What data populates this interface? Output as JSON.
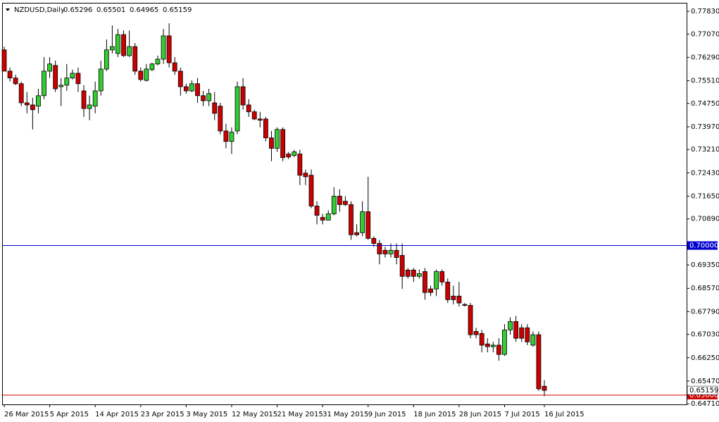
{
  "chart_data": {
    "type": "candlestick",
    "title": "NZDUSD,Daily",
    "up_color": "#33cc33",
    "down_color": "#cc0000",
    "ylim": [
      0.6469,
      0.7809
    ],
    "yticks": [
      {
        "value": 0.6471,
        "label": "0.64710"
      },
      {
        "value": 0.6547,
        "label": "0.65470"
      },
      {
        "value": 0.6625,
        "label": "0.66250"
      },
      {
        "value": 0.6703,
        "label": "0.67030"
      },
      {
        "value": 0.6779,
        "label": "0.67790"
      },
      {
        "value": 0.6857,
        "label": "0.68570"
      },
      {
        "value": 0.6935,
        "label": "0.69350"
      },
      {
        "value": 0.7089,
        "label": "0.70890"
      },
      {
        "value": 0.7165,
        "label": "0.71650"
      },
      {
        "value": 0.7243,
        "label": "0.72430"
      },
      {
        "value": 0.7321,
        "label": "0.73210"
      },
      {
        "value": 0.7397,
        "label": "0.73970"
      },
      {
        "value": 0.7475,
        "label": "0.74750"
      },
      {
        "value": 0.7551,
        "label": "0.75510"
      },
      {
        "value": 0.7629,
        "label": "0.76290"
      },
      {
        "value": 0.7707,
        "label": "0.77070"
      },
      {
        "value": 0.7783,
        "label": "0.77830"
      }
    ],
    "hlines": [
      {
        "value": 0.7,
        "label": "0.70000",
        "color": "#0000cc"
      },
      {
        "value": 0.65,
        "label": "0.65000",
        "color": "#cc0000"
      }
    ],
    "categories": [
      "26 Mar 2015",
      null,
      null,
      null,
      null,
      null,
      null,
      null,
      "5 Apr 2015",
      null,
      null,
      null,
      null,
      null,
      null,
      null,
      "14 Apr 2015",
      null,
      null,
      null,
      null,
      null,
      null,
      null,
      "23 Apr 2015",
      null,
      null,
      null,
      null,
      null,
      null,
      null,
      "3 May 2015",
      null,
      null,
      null,
      null,
      null,
      null,
      null,
      "12 May 2015",
      null,
      null,
      null,
      null,
      null,
      null,
      null,
      "21 May 2015",
      null,
      null,
      null,
      null,
      null,
      null,
      null,
      "31 May 2015",
      null,
      null,
      null,
      null,
      null,
      null,
      null,
      "9 Jun 2015",
      null,
      null,
      null,
      null,
      null,
      null,
      null,
      "18 Jun 2015",
      null,
      null,
      null,
      null,
      null,
      null,
      null,
      "28 Jun 2015",
      null,
      null,
      null,
      null,
      null,
      null,
      null,
      "7 Jul 2015",
      null,
      null,
      null,
      null,
      null,
      null,
      "16 Jul 2015"
    ],
    "open": [
      0.7654,
      0.7583,
      0.756,
      0.7541,
      0.7477,
      0.747,
      0.7466,
      0.7501,
      0.7583,
      0.7602,
      0.7531,
      0.7536,
      0.756,
      0.7576,
      0.7517,
      0.7458,
      0.7466,
      0.7517,
      0.759,
      0.7654,
      0.7642,
      0.7705,
      0.7635,
      0.7665,
      0.7583,
      0.7552,
      0.7588,
      0.7607,
      0.7623,
      0.7701,
      0.7611,
      0.7583,
      0.7531,
      0.7517,
      0.7541,
      0.7501,
      0.7484,
      0.7477,
      0.7466,
      0.7383,
      0.7348,
      0.7383,
      0.7531,
      0.747,
      0.7447,
      0.7423,
      0.7423,
      0.736,
      0.7325,
      0.7388,
      0.7306,
      0.7301,
      0.7306,
      0.7242,
      0.7235,
      0.7132,
      0.7094,
      0.7085,
      0.7106,
      0.7165,
      0.7148,
      0.7137,
      0.7043,
      0.7043,
      0.7113,
      0.7024,
      0.7007,
      0.6984,
      0.6972,
      0.6984,
      0.6967,
      0.6918,
      0.6918,
      0.6897,
      0.6913,
      0.6855,
      0.6855,
      0.6913,
      0.6878,
      0.6831,
      0.6831,
      0.6803,
      0.68,
      0.6713,
      0.6706,
      0.6671,
      0.6662,
      0.6667,
      0.6636,
      0.6718,
      0.6746,
      0.6725,
      0.6725,
      0.6667,
      0.6702,
      0.65296
    ],
    "high": [
      0.7665,
      0.7595,
      0.7571,
      0.7548,
      0.7513,
      0.7494,
      0.7524,
      0.763,
      0.763,
      0.7618,
      0.756,
      0.7607,
      0.7588,
      0.7595,
      0.7536,
      0.7501,
      0.7548,
      0.7618,
      0.7689,
      0.7736,
      0.7724,
      0.7719,
      0.7719,
      0.7677,
      0.7595,
      0.7607,
      0.7611,
      0.7635,
      0.7724,
      0.7743,
      0.763,
      0.7595,
      0.7541,
      0.7552,
      0.756,
      0.7517,
      0.7524,
      0.7513,
      0.7477,
      0.7407,
      0.7395,
      0.7548,
      0.756,
      0.7489,
      0.7454,
      0.7447,
      0.743,
      0.7383,
      0.7395,
      0.7395,
      0.7313,
      0.732,
      0.732,
      0.7254,
      0.7254,
      0.7148,
      0.7106,
      0.7118,
      0.7195,
      0.7188,
      0.7165,
      0.7148,
      0.7071,
      0.7148,
      0.723,
      0.7031,
      0.7019,
      0.6996,
      0.7007,
      0.7007,
      0.7007,
      0.6925,
      0.6925,
      0.692,
      0.6925,
      0.6866,
      0.692,
      0.692,
      0.689,
      0.6866,
      0.6878,
      0.6808,
      0.6808,
      0.6725,
      0.6718,
      0.669,
      0.6678,
      0.669,
      0.6737,
      0.676,
      0.6765,
      0.6737,
      0.6737,
      0.6713,
      0.6713,
      0.65501
    ],
    "low": [
      0.7583,
      0.7548,
      0.7536,
      0.7466,
      0.7442,
      0.7388,
      0.7442,
      0.7489,
      0.756,
      0.7513,
      0.7466,
      0.7517,
      0.7555,
      0.7513,
      0.743,
      0.7419,
      0.7442,
      0.7501,
      0.7583,
      0.7642,
      0.763,
      0.763,
      0.763,
      0.7571,
      0.7548,
      0.7548,
      0.7583,
      0.7602,
      0.7607,
      0.7595,
      0.7571,
      0.7501,
      0.7508,
      0.7513,
      0.7477,
      0.7466,
      0.7466,
      0.7419,
      0.7372,
      0.7325,
      0.7306,
      0.7372,
      0.7454,
      0.743,
      0.7419,
      0.7395,
      0.7348,
      0.7282,
      0.7313,
      0.7282,
      0.7289,
      0.7296,
      0.7202,
      0.7202,
      0.7125,
      0.7071,
      0.7071,
      0.7085,
      0.7101,
      0.7113,
      0.7132,
      0.7019,
      0.7031,
      0.7031,
      0.7019,
      0.6996,
      0.6937,
      0.696,
      0.696,
      0.6937,
      0.6855,
      0.689,
      0.6878,
      0.689,
      0.6819,
      0.6831,
      0.6831,
      0.6866,
      0.6808,
      0.6803,
      0.6796,
      0.6796,
      0.669,
      0.669,
      0.6643,
      0.6643,
      0.6643,
      0.6615,
      0.6631,
      0.6702,
      0.6678,
      0.6678,
      0.6667,
      0.6662,
      0.6514,
      0.64965
    ],
    "close": [
      0.7583,
      0.756,
      0.7541,
      0.7477,
      0.747,
      0.7454,
      0.7501,
      0.7583,
      0.7607,
      0.7524,
      0.7536,
      0.756,
      0.7576,
      0.7541,
      0.7458,
      0.747,
      0.7517,
      0.759,
      0.7654,
      0.7665,
      0.7705,
      0.7635,
      0.7665,
      0.7583,
      0.7555,
      0.759,
      0.7607,
      0.7623,
      0.7701,
      0.7611,
      0.7583,
      0.7531,
      0.7517,
      0.7541,
      0.7501,
      0.7484,
      0.7508,
      0.7442,
      0.7383,
      0.7348,
      0.7379,
      0.7531,
      0.747,
      0.7447,
      0.7423,
      0.7419,
      0.736,
      0.7325,
      0.7388,
      0.7294,
      0.7296,
      0.7313,
      0.7235,
      0.723,
      0.7132,
      0.7101,
      0.7085,
      0.7106,
      0.7165,
      0.7137,
      0.7137,
      0.7036,
      0.7036,
      0.7113,
      0.7024,
      0.7007,
      0.6972,
      0.6972,
      0.6984,
      0.696,
      0.6897,
      0.6897,
      0.6897,
      0.6906,
      0.6843,
      0.6843,
      0.6913,
      0.6878,
      0.6819,
      0.6819,
      0.6808,
      0.68,
      0.6702,
      0.6702,
      0.6667,
      0.6662,
      0.6667,
      0.6636,
      0.6718,
      0.6746,
      0.669,
      0.669,
      0.6678,
      0.6702,
      0.6521,
      0.65159
    ]
  }
}
